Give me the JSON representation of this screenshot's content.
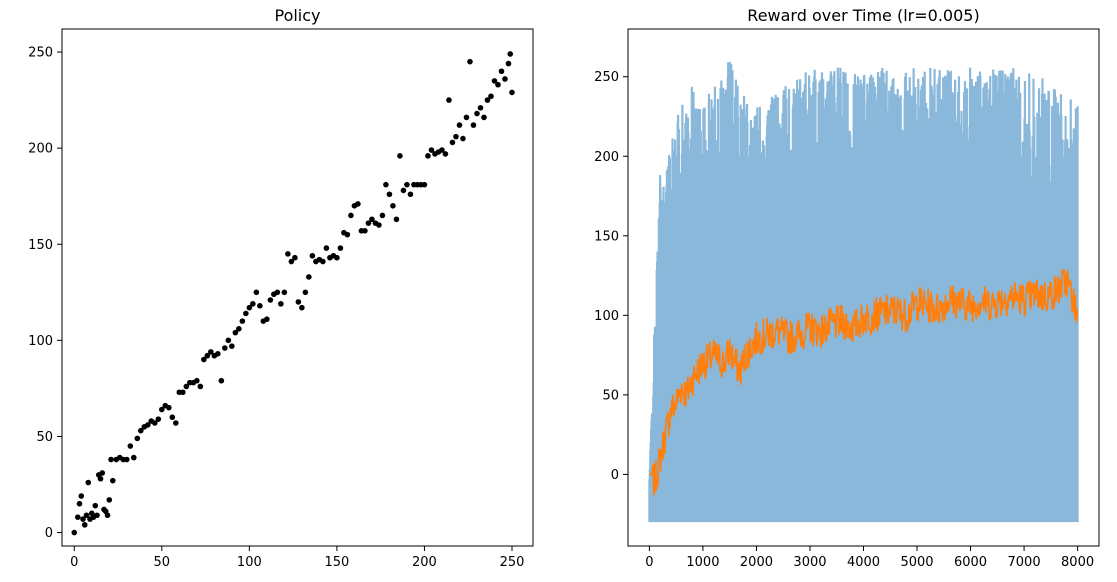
{
  "chart_data": [
    {
      "type": "scatter",
      "title": "Policy",
      "xlabel": "",
      "ylabel": "",
      "xlim": [
        -7,
        262
      ],
      "ylim": [
        -7,
        262
      ],
      "xticks": [
        0,
        50,
        100,
        150,
        200,
        250
      ],
      "yticks": [
        0,
        50,
        100,
        150,
        200,
        250
      ],
      "grid": false,
      "marker_color": "#000000",
      "series": [
        {
          "points": [
            [
              0,
              0
            ],
            [
              2,
              8
            ],
            [
              3,
              15
            ],
            [
              4,
              19
            ],
            [
              5,
              7
            ],
            [
              6,
              4
            ],
            [
              7,
              9
            ],
            [
              8,
              26
            ],
            [
              9,
              7
            ],
            [
              10,
              10
            ],
            [
              11,
              8
            ],
            [
              12,
              14
            ],
            [
              13,
              9
            ],
            [
              14,
              30
            ],
            [
              15,
              28
            ],
            [
              16,
              31
            ],
            [
              17,
              12
            ],
            [
              18,
              11
            ],
            [
              19,
              9
            ],
            [
              20,
              17
            ],
            [
              21,
              38
            ],
            [
              22,
              27
            ],
            [
              24,
              38
            ],
            [
              26,
              39
            ],
            [
              28,
              38
            ],
            [
              30,
              38
            ],
            [
              32,
              45
            ],
            [
              34,
              39
            ],
            [
              36,
              49
            ],
            [
              38,
              53
            ],
            [
              40,
              55
            ],
            [
              42,
              56
            ],
            [
              44,
              58
            ],
            [
              46,
              57
            ],
            [
              48,
              59
            ],
            [
              50,
              64
            ],
            [
              52,
              66
            ],
            [
              54,
              65
            ],
            [
              56,
              60
            ],
            [
              58,
              57
            ],
            [
              60,
              73
            ],
            [
              62,
              73
            ],
            [
              64,
              76
            ],
            [
              66,
              78
            ],
            [
              68,
              78
            ],
            [
              70,
              79
            ],
            [
              72,
              76
            ],
            [
              74,
              90
            ],
            [
              76,
              92
            ],
            [
              78,
              94
            ],
            [
              80,
              92
            ],
            [
              82,
              93
            ],
            [
              84,
              79
            ],
            [
              86,
              96
            ],
            [
              88,
              100
            ],
            [
              90,
              97
            ],
            [
              92,
              104
            ],
            [
              94,
              106
            ],
            [
              96,
              110
            ],
            [
              98,
              114
            ],
            [
              100,
              117
            ],
            [
              102,
              119
            ],
            [
              104,
              125
            ],
            [
              106,
              118
            ],
            [
              108,
              110
            ],
            [
              110,
              111
            ],
            [
              112,
              121
            ],
            [
              114,
              124
            ],
            [
              116,
              125
            ],
            [
              118,
              119
            ],
            [
              120,
              125
            ],
            [
              122,
              145
            ],
            [
              124,
              141
            ],
            [
              126,
              143
            ],
            [
              128,
              120
            ],
            [
              130,
              117
            ],
            [
              132,
              125
            ],
            [
              134,
              133
            ],
            [
              136,
              144
            ],
            [
              138,
              141
            ],
            [
              140,
              142
            ],
            [
              142,
              141
            ],
            [
              144,
              148
            ],
            [
              146,
              143
            ],
            [
              148,
              144
            ],
            [
              150,
              143
            ],
            [
              152,
              148
            ],
            [
              154,
              156
            ],
            [
              156,
              155
            ],
            [
              158,
              165
            ],
            [
              160,
              170
            ],
            [
              162,
              171
            ],
            [
              164,
              157
            ],
            [
              166,
              157
            ],
            [
              168,
              161
            ],
            [
              170,
              163
            ],
            [
              172,
              161
            ],
            [
              174,
              160
            ],
            [
              176,
              165
            ],
            [
              178,
              181
            ],
            [
              180,
              176
            ],
            [
              182,
              170
            ],
            [
              184,
              163
            ],
            [
              186,
              196
            ],
            [
              188,
              178
            ],
            [
              190,
              181
            ],
            [
              192,
              176
            ],
            [
              194,
              181
            ],
            [
              196,
              181
            ],
            [
              198,
              181
            ],
            [
              200,
              181
            ],
            [
              202,
              196
            ],
            [
              204,
              199
            ],
            [
              206,
              197
            ],
            [
              208,
              198
            ],
            [
              210,
              199
            ],
            [
              212,
              197
            ],
            [
              214,
              225
            ],
            [
              216,
              203
            ],
            [
              218,
              206
            ],
            [
              220,
              212
            ],
            [
              222,
              205
            ],
            [
              224,
              216
            ],
            [
              226,
              245
            ],
            [
              228,
              212
            ],
            [
              230,
              218
            ],
            [
              232,
              221
            ],
            [
              234,
              216
            ],
            [
              236,
              225
            ],
            [
              238,
              227
            ],
            [
              240,
              235
            ],
            [
              242,
              233
            ],
            [
              244,
              240
            ],
            [
              246,
              236
            ],
            [
              248,
              244
            ],
            [
              249,
              249
            ],
            [
              250,
              229
            ]
          ]
        }
      ]
    },
    {
      "type": "line",
      "title": "Reward over Time (lr=0.005)",
      "xlabel": "",
      "ylabel": "",
      "xlim": [
        -400,
        8400
      ],
      "ylim": [
        -45,
        280
      ],
      "xticks": [
        0,
        1000,
        2000,
        3000,
        4000,
        5000,
        6000,
        7000,
        8000
      ],
      "yticks": [
        0,
        50,
        100,
        150,
        200,
        250
      ],
      "grid": false,
      "series": [
        {
          "name": "",
          "color": "#8ab8da",
          "x": [
            0,
            100,
            200,
            300,
            500,
            800,
            1000,
            1500,
            2000,
            3000,
            4000,
            5000,
            6000,
            7000,
            7500,
            8000
          ],
          "max": [
            0,
            100,
            190,
            195,
            225,
            245,
            232,
            267,
            232,
            256,
            256,
            256,
            256,
            256,
            246,
            233
          ],
          "min": [
            -30,
            -30,
            -30,
            -30,
            -30,
            -30,
            -30,
            -30,
            -30,
            -30,
            -30,
            -30,
            -30,
            -30,
            -30,
            -30
          ]
        },
        {
          "name": "",
          "color": "#ff7f0e",
          "x": [
            0,
            100,
            200,
            300,
            400,
            500,
            600,
            700,
            800,
            900,
            1000,
            1100,
            1200,
            1300,
            1400,
            1500,
            1600,
            1700,
            1800,
            1900,
            2000,
            2200,
            2400,
            2600,
            2800,
            3000,
            3200,
            3400,
            3600,
            3800,
            4000,
            4200,
            4400,
            4600,
            4800,
            5000,
            5200,
            5400,
            5600,
            5800,
            6000,
            6200,
            6400,
            6600,
            6800,
            7000,
            7200,
            7400,
            7600,
            7800,
            8000
          ],
          "y": [
            0,
            -5,
            10,
            25,
            40,
            45,
            55,
            50,
            60,
            65,
            70,
            72,
            75,
            72,
            70,
            78,
            70,
            65,
            75,
            80,
            85,
            88,
            90,
            86,
            88,
            92,
            90,
            94,
            96,
            92,
            98,
            100,
            102,
            103,
            100,
            108,
            106,
            104,
            110,
            108,
            106,
            109,
            107,
            110,
            112,
            110,
            113,
            112,
            115,
            122,
            100
          ]
        }
      ]
    }
  ]
}
